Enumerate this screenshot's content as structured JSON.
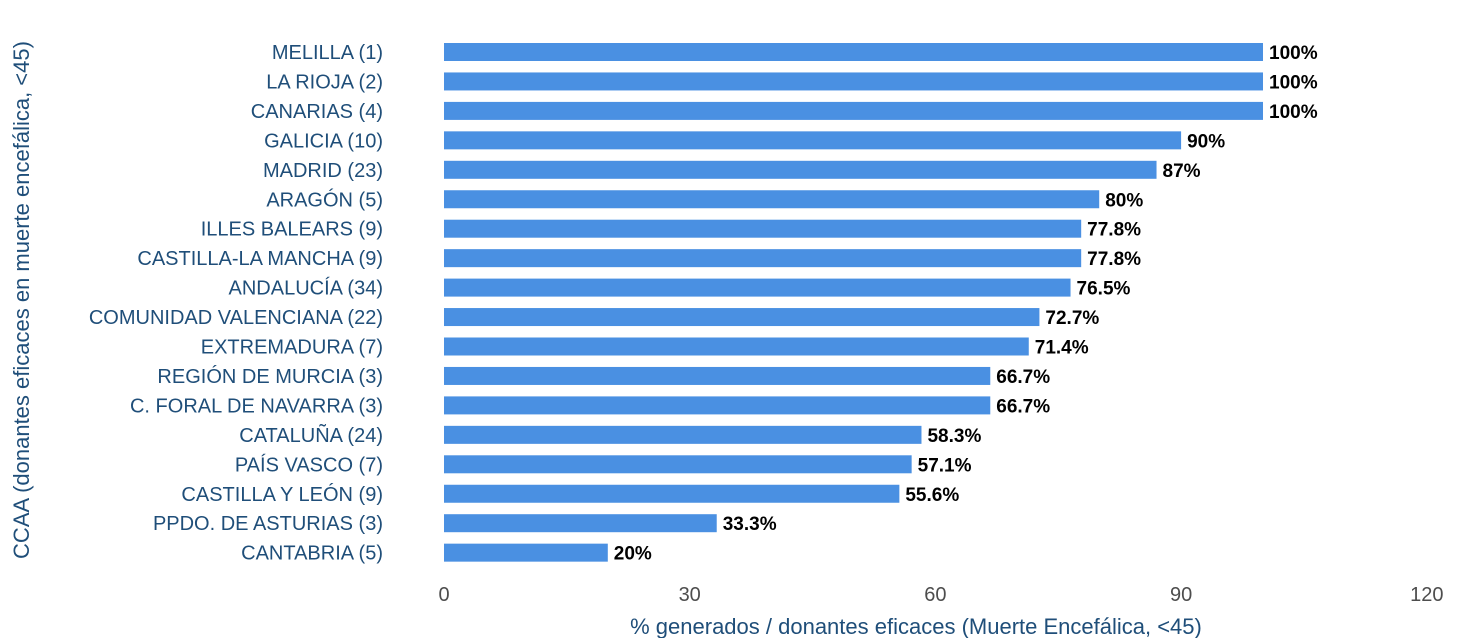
{
  "chart_data": {
    "type": "bar",
    "orientation": "horizontal",
    "xlabel": "% generados / donantes eficaces (Muerte Encefálica, <45)",
    "ylabel": "CCAA (donantes eficaces en muerte encefálica, <45)",
    "xlim": [
      0,
      120
    ],
    "xticks": [
      0,
      30,
      60,
      90,
      120
    ],
    "grid": false,
    "bar_color": "#4a90e2",
    "categories": [
      "MELILLA (1)",
      "LA RIOJA (2)",
      "CANARIAS (4)",
      "GALICIA (10)",
      "MADRID (23)",
      "ARAGÓN (5)",
      "ILLES BALEARS (9)",
      "CASTILLA-LA MANCHA (9)",
      "ANDALUCÍA (34)",
      "COMUNIDAD VALENCIANA (22)",
      "EXTREMADURA (7)",
      "REGIÓN DE MURCIA (3)",
      "C. FORAL DE NAVARRA (3)",
      "CATALUÑA (24)",
      "PAÍS VASCO (7)",
      "CASTILLA Y LEÓN (9)",
      "PPDO. DE ASTURIAS (3)",
      "CANTABRIA (5)"
    ],
    "values": [
      100,
      100,
      100,
      90,
      87,
      80,
      77.8,
      77.8,
      76.5,
      72.7,
      71.4,
      66.7,
      66.7,
      58.3,
      57.1,
      55.6,
      33.3,
      20
    ],
    "value_labels": [
      "100%",
      "100%",
      "100%",
      "90%",
      "87%",
      "80%",
      "77.8%",
      "77.8%",
      "76.5%",
      "72.7%",
      "71.4%",
      "66.7%",
      "66.7%",
      "58.3%",
      "57.1%",
      "55.6%",
      "33.3%",
      "20%"
    ]
  }
}
